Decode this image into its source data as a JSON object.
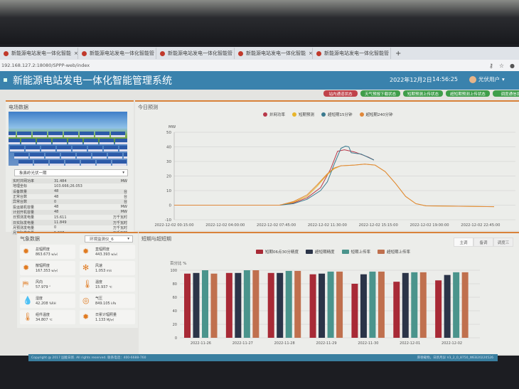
{
  "browser": {
    "tabs": [
      "新能源电站发电一体化智能",
      "新能源电站发电一体化智能管",
      "新能源电站发电一体化智能管",
      "新能源电站发电一体化智能",
      "新能源电站发电一体化智能管"
    ],
    "url": "192.168.127.2:18080/SPPP-web/index"
  },
  "header": {
    "title": "新能源电站发电一体化智能管理系统",
    "date": "2022年12月2日",
    "time": "14:56:25",
    "user": "光伏用户"
  },
  "status_buttons": [
    {
      "label": "站内通道状态",
      "color": "#c0424a"
    },
    {
      "label": "天气预报下载状态",
      "color": "#3f9e4a"
    },
    {
      "label": "短期预测上传状态",
      "color": "#3f9e4a"
    },
    {
      "label": "超短期预测上传状态",
      "color": "#3f9e4a"
    },
    {
      "label": "调度通信状态",
      "color": "#3f9e4a"
    }
  ],
  "field": {
    "title": "电场数据",
    "station": "象鼻岭光伏一期",
    "rows": [
      {
        "k": "实时并网功率",
        "v": "31.484",
        "u": "MW"
      },
      {
        "k": "地理坐标",
        "v": "103.666;26.053",
        "u": ""
      },
      {
        "k": "设备数量",
        "v": "48",
        "u": "台"
      },
      {
        "k": "正常台数",
        "v": "48",
        "u": "台"
      },
      {
        "k": "异常台数",
        "v": "0",
        "u": "台"
      },
      {
        "k": "投运装机容量",
        "v": "48",
        "u": "MW"
      },
      {
        "k": "计划开机容量",
        "v": "48",
        "u": "MW"
      },
      {
        "k": "日预测发电量",
        "v": "15.611",
        "u": "万千瓦时"
      },
      {
        "k": "日实际发电量",
        "v": "11.849",
        "u": "万千瓦时"
      },
      {
        "k": "月预测发电量",
        "v": "0",
        "u": "万千瓦时"
      },
      {
        "k": "月实际发电量",
        "v": "5.307",
        "u": "万千瓦时"
      }
    ]
  },
  "weather": {
    "title": "气象数据",
    "device": "环境监测仪_6",
    "items": [
      {
        "name": "总辐照度",
        "value": "863.673",
        "unit": "w/㎡",
        "icon": "sun-icon"
      },
      {
        "name": "直辐照度",
        "value": "443.393",
        "unit": "w/㎡",
        "icon": "sun-icon"
      },
      {
        "name": "散辐照度",
        "value": "167.353",
        "unit": "w/㎡",
        "icon": "sun-icon"
      },
      {
        "name": "风速",
        "value": "1.053",
        "unit": "m/s",
        "icon": "fan-icon"
      },
      {
        "name": "风向",
        "value": "57.979",
        "unit": "°",
        "icon": "wind-direction-icon"
      },
      {
        "name": "温度",
        "value": "15.937",
        "unit": "℃",
        "icon": "thermometer-icon"
      },
      {
        "name": "湿度",
        "value": "42.208",
        "unit": "%RH",
        "icon": "droplet-icon"
      },
      {
        "name": "气压",
        "value": "849.105",
        "unit": "kPa",
        "icon": "gauge-icon"
      },
      {
        "name": "组件温度",
        "value": "34.807",
        "unit": "℃",
        "icon": "thermometer-icon"
      },
      {
        "name": "日累计辐照量",
        "value": "1.133",
        "unit": "MJ/㎡",
        "icon": "sun-icon"
      }
    ]
  },
  "chart_data": [
    {
      "type": "line",
      "title": "今日预测",
      "ylabel": "MW",
      "ylim": [
        -10,
        50
      ],
      "yticks": [
        -10,
        0,
        10,
        20,
        30,
        40,
        50
      ],
      "grid": true,
      "legend": "top",
      "xticks": [
        "2022-12-02 00:15:00",
        "2022-12-02 04:00:00",
        "2022-12-02 07:45:00",
        "2022-12-02 11:30:00",
        "2022-12-02 15:15:00",
        "2022-12-02 19:00:00",
        "2022-12-02 22:45:00"
      ],
      "series": [
        {
          "name": "并网功率",
          "color": "#b8394a",
          "points": [
            [
              "00:15",
              0
            ],
            [
              "08:00",
              0
            ],
            [
              "09:00",
              1.5
            ],
            [
              "10:00",
              5
            ],
            [
              "11:00",
              12
            ],
            [
              "11:45",
              25
            ],
            [
              "12:15",
              37
            ],
            [
              "12:45",
              38
            ],
            [
              "13:30",
              36.5
            ],
            [
              "14:30",
              33
            ],
            [
              "14:55",
              31
            ]
          ]
        },
        {
          "name": "短期预测",
          "color": "#e8b52a",
          "points": [
            [
              "00:15",
              0
            ],
            [
              "08:00",
              0
            ],
            [
              "09:00",
              2
            ],
            [
              "10:00",
              6
            ],
            [
              "10:45",
              13
            ],
            [
              "11:30",
              21
            ],
            [
              "12:00",
              25
            ],
            [
              "12:30",
              27
            ],
            [
              "13:30",
              27.5
            ],
            [
              "14:15",
              28.2
            ],
            [
              "15:00",
              27.5
            ],
            [
              "15:45",
              23
            ],
            [
              "16:30",
              15
            ],
            [
              "17:15",
              6
            ],
            [
              "18:00",
              1
            ],
            [
              "18:45",
              -0.5
            ],
            [
              "23:45",
              -1
            ]
          ]
        },
        {
          "name": "超短期15分钟",
          "color": "#3b7a8f",
          "points": [
            [
              "00:15",
              0
            ],
            [
              "08:00",
              0
            ],
            [
              "09:00",
              1
            ],
            [
              "10:00",
              4
            ],
            [
              "11:00",
              10
            ],
            [
              "11:30",
              16
            ],
            [
              "12:00",
              28
            ],
            [
              "12:30",
              39
            ],
            [
              "12:50",
              40.5
            ],
            [
              "13:05",
              40
            ],
            [
              "13:15",
              36
            ],
            [
              "14:00",
              35
            ],
            [
              "14:55",
              31
            ]
          ]
        },
        {
          "name": "超短期240分钟",
          "color": "#e0883a",
          "points": [
            [
              "00:15",
              0
            ],
            [
              "08:00",
              0
            ],
            [
              "09:00",
              2.5
            ],
            [
              "10:00",
              7
            ],
            [
              "10:45",
              14
            ],
            [
              "11:30",
              21.5
            ],
            [
              "12:00",
              25.5
            ],
            [
              "12:30",
              27
            ],
            [
              "13:30",
              27.5
            ],
            [
              "14:15",
              28.2
            ],
            [
              "15:00",
              27.5
            ],
            [
              "15:45",
              23
            ],
            [
              "16:30",
              15
            ],
            [
              "17:15",
              6
            ],
            [
              "18:00",
              1
            ],
            [
              "18:45",
              -0.5
            ],
            [
              "23:45",
              -1
            ]
          ]
        }
      ]
    },
    {
      "type": "bar",
      "title": "短期与超短期",
      "ylabel": "百分比 %",
      "ylim": [
        0,
        100
      ],
      "yticks": [
        0,
        20,
        40,
        60,
        80,
        100
      ],
      "grid": true,
      "legend": "top",
      "tabs": [
        "主调",
        "备调",
        "调度三"
      ],
      "categories": [
        "2022-11-26",
        "2022-11-27",
        "2022-11-28",
        "2022-11-29",
        "2022-11-30",
        "2022-12-01",
        "2022-12-02"
      ],
      "series": [
        {
          "name": "短期06点30分精度",
          "color": "#a82a36",
          "values": [
            95,
            96,
            96,
            94,
            80,
            83,
            85
          ]
        },
        {
          "name": "超短期精度",
          "color": "#2b3448",
          "values": [
            96,
            96,
            96,
            95,
            94,
            96,
            93
          ]
        },
        {
          "name": "短期上传率",
          "color": "#4a948c",
          "values": [
            100,
            100,
            99,
            98,
            98,
            97,
            97
          ]
        },
        {
          "name": "超短期上传率",
          "color": "#c0704e",
          "values": [
            95,
            100,
            99,
            98,
            98,
            97,
            97
          ]
        }
      ]
    }
  ],
  "footer": {
    "copyright": "Copyright @ 2017 国能日新. All rights reserved. 联系电话：400-6688-760",
    "version": "厚德载物，日新月异   V3_2_0_8750_WEB20220526"
  }
}
